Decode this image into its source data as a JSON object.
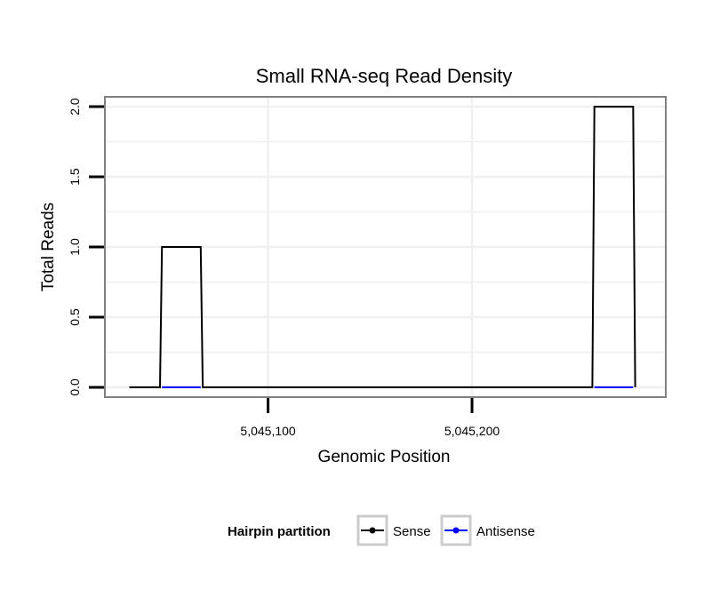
{
  "chart_data": {
    "type": "line",
    "title": "Small RNA-seq Read Density",
    "xlabel": "Genomic Position",
    "ylabel": "Total Reads",
    "xlim": [
      5045020,
      5045295
    ],
    "ylim": [
      -0.07,
      2.07
    ],
    "x_ticks": [
      5045100,
      5045200
    ],
    "x_tick_labels": [
      "5,045,100",
      "5,045,200"
    ],
    "y_ticks": [
      0.0,
      0.5,
      1.0,
      1.5,
      2.0
    ],
    "y_tick_labels": [
      "0.0",
      "0.5",
      "1.0",
      "1.5",
      "2.0"
    ],
    "grid": true,
    "legend_title": "Hairpin partition",
    "series": [
      {
        "name": "Sense",
        "color": "#000000",
        "x": [
          5045032,
          5045047,
          5045048,
          5045067,
          5045068,
          5045259,
          5045260,
          5045279,
          5045280
        ],
        "y": [
          0,
          0,
          1,
          1,
          0,
          0,
          2,
          2,
          0
        ]
      },
      {
        "name": "Antisense",
        "color": "#0000ff",
        "x": [
          5045048,
          5045067,
          5045260,
          5045279
        ],
        "y": [
          0,
          0,
          0,
          0
        ]
      }
    ]
  }
}
